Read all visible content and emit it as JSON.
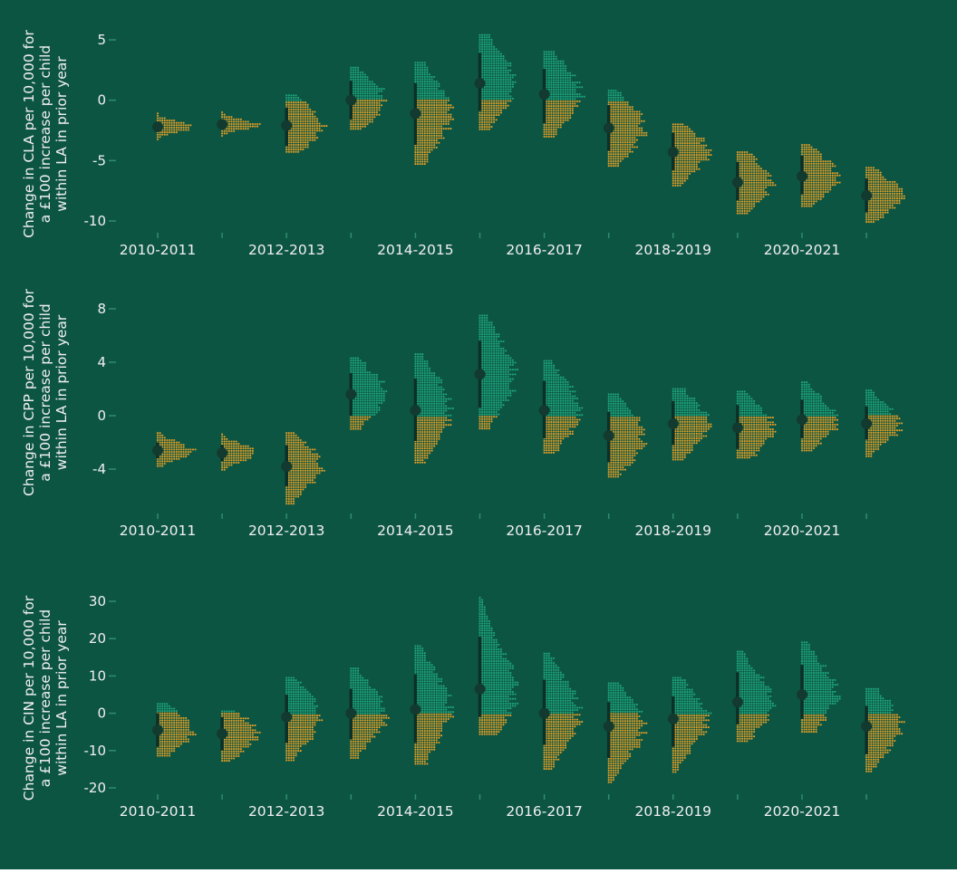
{
  "colors": {
    "background": "#0d5543",
    "positive": "#1ea77e",
    "negative": "#e59f26",
    "interval": "#0c2f26",
    "point": "#133a2f",
    "text": "#f0f0f0",
    "tick": "#2f8d6c"
  },
  "chart_data": [
    {
      "type": "scatter",
      "ylabel": [
        "Change in CLA per 10,000 for",
        "a £100 increase per child",
        "within LA in prior year"
      ],
      "ylim": [
        -11,
        5.5
      ],
      "yticks": [
        5,
        0,
        -5,
        -10
      ],
      "ytick_labels": [
        "5",
        "0",
        "-5",
        "-10"
      ],
      "xtick_labels": [
        "2010-2011",
        "2012-2013",
        "2014-2015",
        "2016-2017",
        "2018-2019",
        "2020-2021"
      ],
      "grid": false,
      "legend": "none",
      "series": [
        {
          "point": -2.2,
          "lo": -2.6,
          "hi": -1.8,
          "min": -3.4,
          "max": -1.1
        },
        {
          "point": -2.0,
          "lo": -2.4,
          "hi": -1.6,
          "min": -3.0,
          "max": -1.0
        },
        {
          "point": -2.1,
          "lo": -3.8,
          "hi": -0.6,
          "min": -4.3,
          "max": 0.4
        },
        {
          "point": 0.0,
          "lo": -1.6,
          "hi": 1.6,
          "min": -2.5,
          "max": 2.7
        },
        {
          "point": -1.1,
          "lo": -3.7,
          "hi": 1.4,
          "min": -5.3,
          "max": 3.1
        },
        {
          "point": 1.4,
          "lo": -0.9,
          "hi": 3.9,
          "min": -2.5,
          "max": 5.4
        },
        {
          "point": 0.5,
          "lo": -1.9,
          "hi": 2.6,
          "min": -3.2,
          "max": 4.0
        },
        {
          "point": -2.3,
          "lo": -4.2,
          "hi": -0.4,
          "min": -5.5,
          "max": 0.8
        },
        {
          "point": -4.3,
          "lo": -5.8,
          "hi": -2.7,
          "min": -7.1,
          "max": -2.0
        },
        {
          "point": -6.8,
          "lo": -8.3,
          "hi": -5.1,
          "min": -9.5,
          "max": -4.3
        },
        {
          "point": -6.3,
          "lo": -7.8,
          "hi": -4.6,
          "min": -8.8,
          "max": -3.7
        },
        {
          "point": -7.9,
          "lo": -9.3,
          "hi": -6.5,
          "min": -10.2,
          "max": -5.6
        }
      ]
    },
    {
      "type": "scatter",
      "ylabel": [
        "Change in CPP per 10,000 for",
        "a £100 increase per child",
        "within LA in prior year"
      ],
      "ylim": [
        -7.5,
        9
      ],
      "yticks": [
        8,
        4,
        0,
        -4
      ],
      "ytick_labels": [
        "8",
        "4",
        "0",
        "-4"
      ],
      "xtick_labels": [
        "2010-2011",
        "2012-2013",
        "2014-2015",
        "2016-2017",
        "2018-2019",
        "2020-2021"
      ],
      "grid": false,
      "legend": "none",
      "series": [
        {
          "point": -2.6,
          "lo": -3.2,
          "hi": -2.0,
          "min": -3.9,
          "max": -1.3
        },
        {
          "point": -2.8,
          "lo": -3.4,
          "hi": -2.2,
          "min": -4.1,
          "max": -1.4
        },
        {
          "point": -3.8,
          "lo": -5.3,
          "hi": -2.2,
          "min": -6.6,
          "max": -1.3
        },
        {
          "point": 1.6,
          "lo": 0.0,
          "hi": 3.2,
          "min": -1.0,
          "max": 4.3
        },
        {
          "point": 0.4,
          "lo": -1.9,
          "hi": 2.8,
          "min": -3.6,
          "max": 4.6
        },
        {
          "point": 3.1,
          "lo": 0.6,
          "hi": 5.6,
          "min": -1.0,
          "max": 7.5
        },
        {
          "point": 0.4,
          "lo": -1.7,
          "hi": 2.6,
          "min": -2.9,
          "max": 4.1
        },
        {
          "point": -1.5,
          "lo": -3.5,
          "hi": 0.3,
          "min": -4.7,
          "max": 1.6
        },
        {
          "point": -0.6,
          "lo": -2.2,
          "hi": 1.1,
          "min": -3.3,
          "max": 2.0
        },
        {
          "point": -0.9,
          "lo": -2.5,
          "hi": 0.8,
          "min": -3.2,
          "max": 1.8
        },
        {
          "point": -0.3,
          "lo": -1.7,
          "hi": 1.2,
          "min": -2.7,
          "max": 2.5
        },
        {
          "point": -0.6,
          "lo": -1.8,
          "hi": 0.7,
          "min": -3.2,
          "max": 1.9
        }
      ]
    },
    {
      "type": "scatter",
      "ylabel": [
        "Change in CIN per 10,000 for",
        "a £100 increase per child",
        "within LA in prior year"
      ],
      "ylim": [
        -22,
        32
      ],
      "yticks": [
        30,
        20,
        10,
        0,
        -10,
        -20
      ],
      "ytick_labels": [
        "30",
        "20",
        "10",
        "0",
        "-10",
        "-20"
      ],
      "xtick_labels": [
        "2010-2011",
        "2012-2013",
        "2014-2015",
        "2016-2017",
        "2018-2019",
        "2020-2021"
      ],
      "grid": false,
      "legend": "none",
      "series": [
        {
          "point": -4.5,
          "lo": -9.0,
          "hi": 0.0,
          "min": -12.0,
          "max": 2.5
        },
        {
          "point": -5.5,
          "lo": -10.0,
          "hi": -1.0,
          "min": -13.0,
          "max": 0.5
        },
        {
          "point": -1.0,
          "lo": -8.0,
          "hi": 5.0,
          "min": -13.0,
          "max": 9.5
        },
        {
          "point": 0.0,
          "lo": -7.0,
          "hi": 6.5,
          "min": -12.0,
          "max": 12.0
        },
        {
          "point": 1.0,
          "lo": -8.0,
          "hi": 10.5,
          "min": -14.0,
          "max": 18.0
        },
        {
          "point": 6.5,
          "lo": -1.0,
          "hi": 20.5,
          "min": -6.0,
          "max": 31.0
        },
        {
          "point": 0.0,
          "lo": -8.5,
          "hi": 9.0,
          "min": -15.0,
          "max": 16.0
        },
        {
          "point": -3.5,
          "lo": -12.0,
          "hi": 3.0,
          "min": -19.0,
          "max": 8.0
        },
        {
          "point": -1.5,
          "lo": -9.0,
          "hi": 4.5,
          "min": -16.0,
          "max": 9.5
        },
        {
          "point": 3.0,
          "lo": -3.0,
          "hi": 11.0,
          "min": -7.5,
          "max": 16.5
        },
        {
          "point": 5.0,
          "lo": -1.5,
          "hi": 13.0,
          "min": -5.0,
          "max": 19.0
        },
        {
          "point": -3.5,
          "lo": -11.0,
          "hi": 2.0,
          "min": -16.0,
          "max": 6.5
        }
      ]
    }
  ]
}
